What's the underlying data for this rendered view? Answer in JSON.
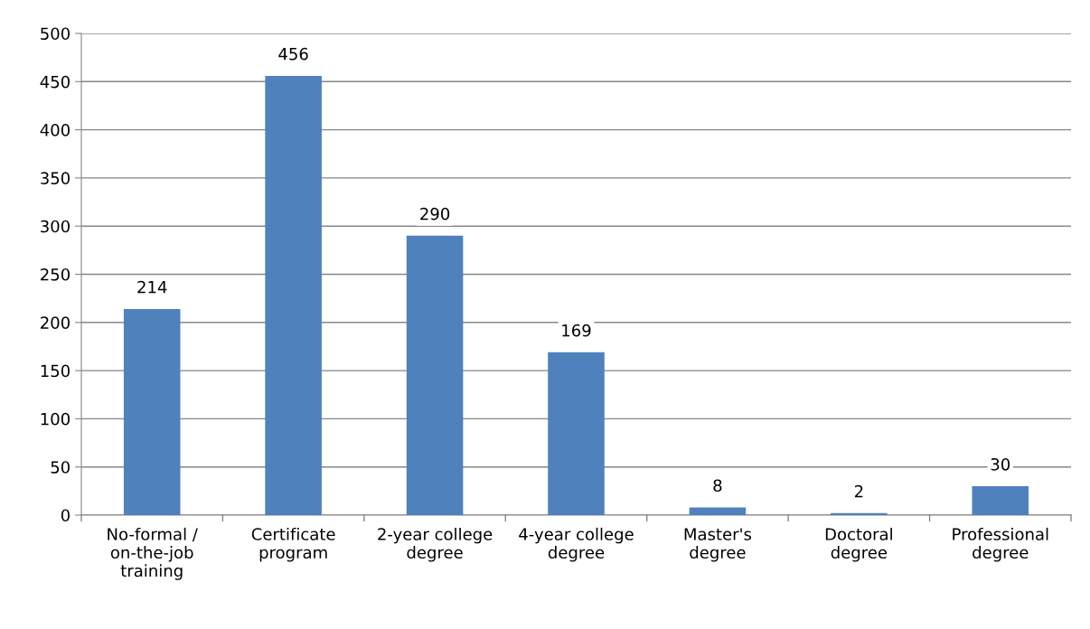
{
  "chart_data": {
    "type": "bar",
    "categories": [
      "No-formal /\non-the-job\ntraining",
      "Certificate\nprogram",
      "2-year college\ndegree",
      "4-year college\ndegree",
      "Master's\ndegree",
      "Doctoral\ndegree",
      "Professional\ndegree"
    ],
    "values": [
      214,
      456,
      290,
      169,
      8,
      2,
      30
    ],
    "color": "#4f81bd",
    "ylim": [
      0,
      500
    ],
    "yticks": [
      0,
      50,
      100,
      150,
      200,
      250,
      300,
      350,
      400,
      450,
      500
    ],
    "grid": "y",
    "data_labels": true
  }
}
